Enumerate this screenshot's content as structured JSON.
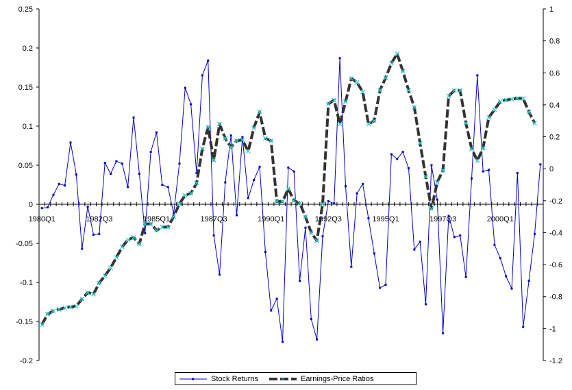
{
  "chart_data": {
    "type": "line",
    "x_tick_labels": [
      "1980Q1",
      "1982Q3",
      "1985Q1",
      "1987Q3",
      "1990Q1",
      "1992Q3",
      "1995Q1",
      "1997Q3",
      "2000Q1"
    ],
    "left_axis": {
      "min": -0.2,
      "max": 0.25,
      "ticks": [
        "-0.2",
        "-0.15",
        "-0.1",
        "-0.05",
        "0",
        "0.05",
        "0.1",
        "0.15",
        "0.2",
        "0.25"
      ]
    },
    "right_axis": {
      "min": -1.2,
      "max": 1,
      "ticks": [
        "-1.2",
        "-1",
        "-0.8",
        "-0.6",
        "-0.4",
        "-0.2",
        "0",
        "0.2",
        "0.4",
        "0.6",
        "0.8",
        "1"
      ]
    },
    "series": [
      {
        "name": "Stock Returns",
        "axis": "left",
        "color": "#0000cc",
        "values": [
          -0.005,
          -0.004,
          0.012,
          0.026,
          0.024,
          0.079,
          0.038,
          -0.057,
          -0.003,
          -0.039,
          -0.038,
          0.053,
          0.039,
          0.055,
          0.052,
          0.022,
          0.111,
          0.039,
          -0.037,
          0.067,
          0.092,
          0.025,
          0.022,
          -0.012,
          0.052,
          0.149,
          0.128,
          0.04,
          0.165,
          0.184,
          -0.04,
          -0.09,
          0.028,
          0.088,
          -0.014,
          0.086,
          0.008,
          0.031,
          0.048,
          -0.061,
          -0.136,
          -0.121,
          -0.176,
          0.047,
          0.042,
          -0.098,
          -0.03,
          -0.147,
          -0.173,
          -0.041,
          0.004,
          0.001,
          0.187,
          0.023,
          -0.08,
          0.014,
          0.026,
          -0.018,
          -0.063,
          -0.107,
          -0.103,
          0.064,
          0.058,
          0.067,
          0.046,
          -0.058,
          -0.048,
          -0.128,
          0.05,
          0.006,
          -0.165,
          -0.015,
          -0.042,
          -0.04,
          -0.093,
          0.033,
          0.165,
          0.042,
          0.044,
          -0.052,
          -0.069,
          -0.092,
          -0.108,
          0.04,
          -0.157,
          -0.098,
          -0.038,
          0.051
        ]
      },
      {
        "name": "Earnings-Price Ratios",
        "axis": "right",
        "color": "#333333",
        "marker_color": "#33cccc",
        "values": [
          -0.975,
          -0.91,
          -0.89,
          -0.88,
          -0.87,
          -0.865,
          -0.86,
          -0.815,
          -0.775,
          -0.785,
          -0.715,
          -0.67,
          -0.62,
          -0.555,
          -0.49,
          -0.445,
          -0.43,
          -0.47,
          -0.345,
          -0.345,
          -0.385,
          -0.365,
          -0.365,
          -0.3,
          -0.22,
          -0.165,
          -0.155,
          -0.09,
          0.125,
          0.26,
          0.055,
          0.28,
          0.19,
          0.135,
          0.175,
          0.18,
          0.11,
          0.255,
          0.355,
          0.19,
          0.175,
          -0.205,
          -0.205,
          -0.125,
          -0.2,
          -0.215,
          -0.3,
          -0.4,
          -0.45,
          -0.22,
          0.405,
          0.43,
          0.28,
          0.42,
          0.565,
          0.54,
          0.48,
          0.28,
          0.3,
          0.49,
          0.57,
          0.66,
          0.72,
          0.61,
          0.49,
          0.385,
          0.16,
          -0.05,
          -0.25,
          -0.085,
          -0.01,
          0.455,
          0.49,
          0.49,
          0.285,
          0.125,
          0.05,
          0.13,
          0.32,
          0.37,
          0.42,
          0.43,
          0.435,
          0.44,
          0.44,
          0.355,
          0.285
        ]
      }
    ],
    "grid": false,
    "legend_position": "bottom-center"
  }
}
